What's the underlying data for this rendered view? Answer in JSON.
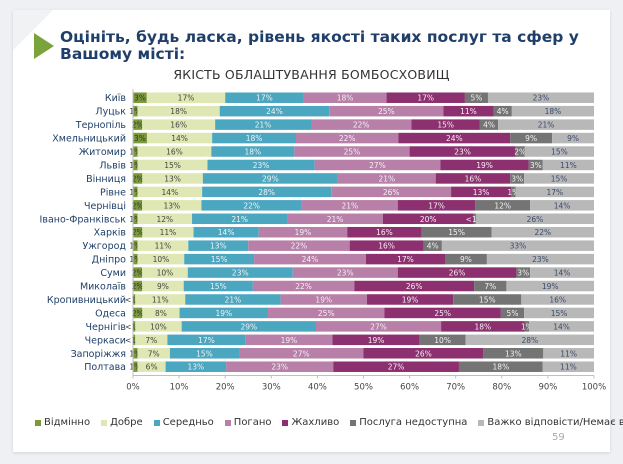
{
  "slide": {
    "title": "Оцініть, будь ласка, рівень якості таких послуг та сфер у Вашому місті:",
    "page_number": "59"
  },
  "chart_data": {
    "type": "bar",
    "orientation": "horizontal",
    "stacked": "percent",
    "title": "ЯКІСТЬ ОБЛАШТУВАННЯ  БОМБОСХОВИЩ",
    "xlabel": "",
    "ylabel": "",
    "xlim": [
      0,
      100
    ],
    "x_ticks": [
      "0%",
      "10%",
      "20%",
      "30%",
      "40%",
      "50%",
      "60%",
      "70%",
      "80%",
      "90%",
      "100%"
    ],
    "legend_position": "bottom",
    "categories": [
      "Київ",
      "Луцьк",
      "Тернопіль",
      "Хмельницький",
      "Житомир",
      "Львів",
      "Вінниця",
      "Рівне",
      "Чернівці",
      "Івано-Франківськ",
      "Харків",
      "Ужгород",
      "Дніпро",
      "Суми",
      "Миколаїв",
      "Кропивницький",
      "Одеса",
      "Чернігів",
      "Черкаси",
      "Запоріжжя",
      "Полтава"
    ],
    "series": [
      {
        "name": "Відмінно",
        "color": "#7a9a3a",
        "values": [
          3,
          1,
          2,
          3,
          1,
          1,
          2,
          1,
          2,
          1,
          2,
          1,
          1,
          2,
          2,
          0.5,
          2,
          0.5,
          0.5,
          1,
          1
        ],
        "labels": [
          "3%",
          "1%",
          "2%",
          "3%",
          "1%",
          "1%",
          "2%",
          "1%",
          "2%",
          "1%",
          "2%",
          "1%",
          "1%",
          "2%",
          "2%",
          "<1%",
          "2%",
          "<1%",
          "<1%",
          "1%",
          "1%"
        ]
      },
      {
        "name": "Добре",
        "color": "#dfe8b4",
        "values": [
          17,
          18,
          16,
          14,
          16,
          15,
          13,
          14,
          13,
          12,
          11,
          11,
          10,
          10,
          9,
          11,
          8,
          10,
          7,
          7,
          6
        ]
      },
      {
        "name": "Середньо",
        "color": "#4ba6c0",
        "values": [
          17,
          24,
          21,
          18,
          18,
          23,
          29,
          28,
          22,
          21,
          14,
          13,
          15,
          23,
          15,
          21,
          19,
          29,
          17,
          15,
          13
        ]
      },
      {
        "name": "Погано",
        "color": "#b87fa8",
        "values": [
          18,
          25,
          22,
          22,
          25,
          27,
          21,
          26,
          21,
          21,
          19,
          22,
          24,
          23,
          22,
          19,
          25,
          27,
          19,
          27,
          23
        ]
      },
      {
        "name": "Жахливо",
        "color": "#8c3070",
        "values": [
          17,
          11,
          15,
          24,
          23,
          19,
          16,
          13,
          17,
          20,
          16,
          16,
          17,
          26,
          26,
          19,
          25,
          18,
          19,
          26,
          27
        ]
      },
      {
        "name": "Послуга недоступна",
        "color": "#747474",
        "values": [
          5,
          4,
          4,
          9,
          2,
          3,
          3,
          1,
          12,
          0.5,
          15,
          4,
          9,
          3,
          7,
          15,
          5,
          1,
          10,
          13,
          18
        ],
        "labels": [
          "5%",
          "4%",
          "4%",
          "9%",
          "2%",
          "3%",
          "3%",
          "1%",
          "12%",
          "<1%",
          "15%",
          "4%",
          "9%",
          "3%",
          "7%",
          "15%",
          "5%",
          "1%",
          "10%",
          "13%",
          "18%"
        ]
      },
      {
        "name": "Важко відповісти/Немає відповіді",
        "color": "#b8b8b8",
        "values": [
          23,
          18,
          21,
          9,
          15,
          11,
          15,
          17,
          14,
          26,
          22,
          33,
          23,
          14,
          19,
          16,
          15,
          14,
          28,
          11,
          11
        ]
      }
    ]
  }
}
